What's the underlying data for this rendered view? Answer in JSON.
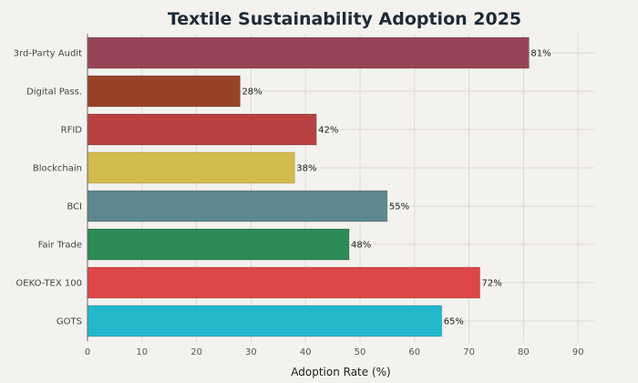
{
  "chart_data": {
    "type": "bar",
    "orientation": "horizontal",
    "title": "Textile Sustainability Adoption 2025",
    "xlabel": "Adoption Rate (%)",
    "ylabel": "",
    "xlim": [
      0,
      93
    ],
    "xticks": [
      "0",
      "10",
      "20",
      "30",
      "40",
      "50",
      "60",
      "70",
      "80",
      "90"
    ],
    "grid": true,
    "categories": [
      "3rd-Party Audit",
      "Digital Pass.",
      "RFID",
      "Blockchain",
      "BCI",
      "Fair Trade",
      "OEKO-TEX 100",
      "GOTS"
    ],
    "values": [
      81,
      28,
      42,
      38,
      55,
      48,
      72,
      65
    ],
    "data_labels": [
      "81%",
      "28%",
      "42%",
      "38%",
      "55%",
      "48%",
      "72%",
      "65%"
    ],
    "colors": [
      "#974556",
      "#97432a",
      "#b74140",
      "#d3bc4e",
      "#5e8790",
      "#2e8a56",
      "#dd4747",
      "#21b8cb"
    ]
  }
}
